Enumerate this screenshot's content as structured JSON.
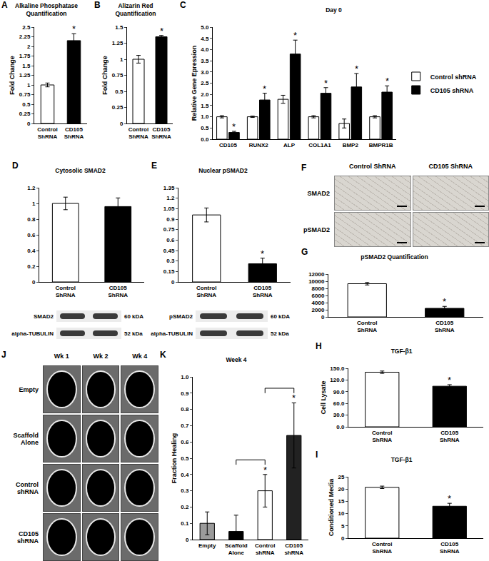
{
  "chart_data": [
    {
      "type": "bar",
      "panel": "A",
      "title": "Alkaline Phosphatase Quantification",
      "ylabel": "Fold Change",
      "categories": [
        "Control ShRNA",
        "CD105 ShRNA"
      ],
      "values": [
        1.0,
        2.15
      ],
      "errors": [
        0.05,
        0.18
      ],
      "colors": [
        "#ffffff",
        "#000000"
      ],
      "ylim": [
        0,
        2.5
      ],
      "yticks": [
        0,
        0.25,
        0.5,
        0.75,
        1,
        1.25,
        1.5,
        1.75,
        2,
        2.25,
        2.5
      ],
      "grid": false,
      "annotations": [
        {
          "category": "CD105 ShRNA",
          "text": "*"
        }
      ]
    },
    {
      "type": "bar",
      "panel": "B",
      "title": "Alizarin Red Quantification",
      "ylabel": "Fold Change",
      "categories": [
        "Control ShRNA",
        "CD105 ShRNA"
      ],
      "values": [
        1.0,
        1.35
      ],
      "errors": [
        0.06,
        0.02
      ],
      "colors": [
        "#ffffff",
        "#000000"
      ],
      "ylim": [
        0,
        1.5
      ],
      "yticks": [
        0,
        0.25,
        0.5,
        0.75,
        1,
        1.25,
        1.5
      ],
      "grid": false,
      "annotations": [
        {
          "category": "CD105 ShRNA",
          "text": "*"
        }
      ]
    },
    {
      "type": "bar",
      "panel": "C",
      "title": "Day 0",
      "ylabel": "Relative Gene Epression",
      "categories": [
        "CD105",
        "RUNX2",
        "ALP",
        "COL1A1",
        "BMP2",
        "BMPR1B"
      ],
      "series": [
        {
          "name": "Control shRNA",
          "color": "#ffffff",
          "values": [
            1.0,
            1.0,
            1.78,
            1.0,
            0.7,
            1.0
          ],
          "errors": [
            0.05,
            0.03,
            0.18,
            0.05,
            0.2,
            0.05
          ]
        },
        {
          "name": "CD105 shRNA",
          "color": "#000000",
          "values": [
            0.3,
            1.75,
            3.8,
            2.05,
            2.33,
            2.1
          ],
          "errors": [
            0.05,
            0.3,
            0.62,
            0.25,
            0.6,
            0.28
          ]
        }
      ],
      "ylim": [
        0,
        5
      ],
      "yticks": [
        {
          "value": 0,
          "label": "0.0"
        },
        0.5,
        {
          "value": 1,
          "label": "1.0"
        },
        1.5,
        {
          "value": 2,
          "label": "2.0"
        },
        2.5,
        {
          "value": 3,
          "label": "3.0"
        },
        3.5,
        {
          "value": 4,
          "label": "4.0"
        },
        4.5,
        {
          "value": 5,
          "label": "5.0"
        }
      ],
      "grid": false,
      "legend": "right",
      "annotations": [
        {
          "category": "CD105",
          "series": "CD105 shRNA",
          "text": "*"
        },
        {
          "category": "RUNX2",
          "series": "CD105 shRNA",
          "text": "*"
        },
        {
          "category": "ALP",
          "series": "CD105 shRNA",
          "text": "*"
        },
        {
          "category": "COL1A1",
          "series": "CD105 shRNA",
          "text": "*"
        },
        {
          "category": "BMP2",
          "series": "CD105 shRNA",
          "text": "*"
        },
        {
          "category": "BMPR1B",
          "series": "CD105 shRNA",
          "text": "*"
        }
      ]
    },
    {
      "type": "bar",
      "panel": "D",
      "title": "Cytosolic SMAD2",
      "categories": [
        "Control ShRNA",
        "CD105 ShRNA"
      ],
      "values": [
        1.0,
        0.96
      ],
      "errors": [
        0.08,
        0.11
      ],
      "colors": [
        "#ffffff",
        "#000000"
      ],
      "ylim": [
        0,
        1.2
      ],
      "yticks": [
        0,
        0.2,
        0.4,
        0.6,
        0.8,
        1,
        1.2
      ],
      "grid": false,
      "blot": [
        {
          "band": "SMAD2",
          "size": "60 kDA"
        },
        {
          "band": "alpha-TUBULIN",
          "size": "52 kDa"
        }
      ]
    },
    {
      "type": "bar",
      "panel": "E",
      "title": "Nuclear pSMAD2",
      "categories": [
        "Control ShRNA",
        "CD105 ShRNA"
      ],
      "values": [
        0.96,
        0.26
      ],
      "errors": [
        0.1,
        0.08
      ],
      "colors": [
        "#ffffff",
        "#000000"
      ],
      "ylim": [
        0,
        1.35
      ],
      "yticks": [
        0,
        0.15,
        0.3,
        0.45,
        0.6,
        0.75,
        0.9,
        1.05,
        1.2,
        1.35
      ],
      "grid": false,
      "annotations": [
        {
          "category": "CD105 ShRNA",
          "text": "*"
        }
      ],
      "blot": [
        {
          "band": "pSMAD2",
          "size": "60 kDA"
        },
        {
          "band": "alpha-TUBULIN",
          "size": "52 kDa"
        }
      ]
    },
    {
      "type": "image",
      "panel": "F",
      "columns": [
        "Control ShRNA",
        "CD105 ShRNA"
      ],
      "rows": [
        "SMAD2",
        "pSMAD2"
      ]
    },
    {
      "type": "bar",
      "panel": "G",
      "title": "pSMAD2 Quantification",
      "categories": [
        "Control ShRNA",
        "CD105 ShRNA"
      ],
      "values": [
        9300,
        2400
      ],
      "errors": [
        350,
        550
      ],
      "colors": [
        "#ffffff",
        "#000000"
      ],
      "ylim": [
        0,
        12000
      ],
      "yticks": [
        0,
        2000,
        4000,
        6000,
        8000,
        10000,
        12000
      ],
      "grid": false,
      "annotations": [
        {
          "category": "CD105 ShRNA",
          "text": "*"
        }
      ]
    },
    {
      "type": "bar",
      "panel": "H",
      "title": "TGF-β1",
      "ylabel": "Cell Lysate",
      "categories": [
        "Control ShRNA",
        "CD105 ShRNA"
      ],
      "values": [
        140,
        104
      ],
      "errors": [
        3,
        4
      ],
      "colors": [
        "#ffffff",
        "#000000"
      ],
      "ylim": [
        0,
        150
      ],
      "yticks": [
        {
          "value": 0,
          "label": "0.0"
        },
        {
          "value": 30,
          "label": "30.0"
        },
        {
          "value": 60,
          "label": "60.0"
        },
        {
          "value": 90,
          "label": "90.0"
        },
        {
          "value": 120,
          "label": "120.0"
        },
        {
          "value": 150,
          "label": "150.0"
        }
      ],
      "grid": false,
      "annotations": [
        {
          "category": "CD105 ShRNA",
          "text": "*"
        }
      ]
    },
    {
      "type": "bar",
      "panel": "I",
      "title": "TGF-β1",
      "ylabel": "Conditioned Media",
      "categories": [
        "Control ShRNA",
        "CD105 ShRNA"
      ],
      "values": [
        20.7,
        13
      ],
      "errors": [
        0.5,
        1.2
      ],
      "colors": [
        "#ffffff",
        "#000000"
      ],
      "ylim": [
        0,
        25
      ],
      "yticks": [
        0,
        5,
        10,
        15,
        20,
        25
      ],
      "grid": false,
      "annotations": [
        {
          "category": "CD105 ShRNA",
          "text": "*"
        }
      ]
    },
    {
      "type": "image",
      "panel": "J",
      "columns": [
        "Wk 1",
        "Wk 2",
        "Wk 4"
      ],
      "rows": [
        "Empty",
        "Scaffold Alone",
        "Control shRNA",
        "CD105 shRNA"
      ]
    },
    {
      "type": "bar",
      "panel": "K",
      "title": "Week 4",
      "ylabel": "Fraction Healing",
      "categories": [
        "Empty",
        "Scaffold Alone",
        "Control shRNA",
        "CD105 shRNA"
      ],
      "values": [
        0.1,
        0.05,
        0.3,
        0.64
      ],
      "errors": [
        0.07,
        0.1,
        0.1,
        0.2
      ],
      "colors": [
        "#9a9a9a",
        "#000000",
        "#ffffff",
        "#222222"
      ],
      "ylim": [
        0,
        1
      ],
      "yticks": [
        0,
        0.1,
        0.2,
        0.3,
        0.4,
        0.5,
        0.6,
        0.7,
        0.8,
        0.9,
        {
          "value": 1,
          "label": "1.0"
        }
      ],
      "grid": false,
      "annotations": [
        {
          "category": "Control shRNA",
          "text": "*"
        },
        {
          "category": "CD105 shRNA",
          "text": "*"
        }
      ],
      "brackets": [
        {
          "from": "Scaffold Alone",
          "to": "Control shRNA"
        },
        {
          "from": "Control shRNA",
          "to": "CD105 shRNA"
        }
      ]
    }
  ]
}
